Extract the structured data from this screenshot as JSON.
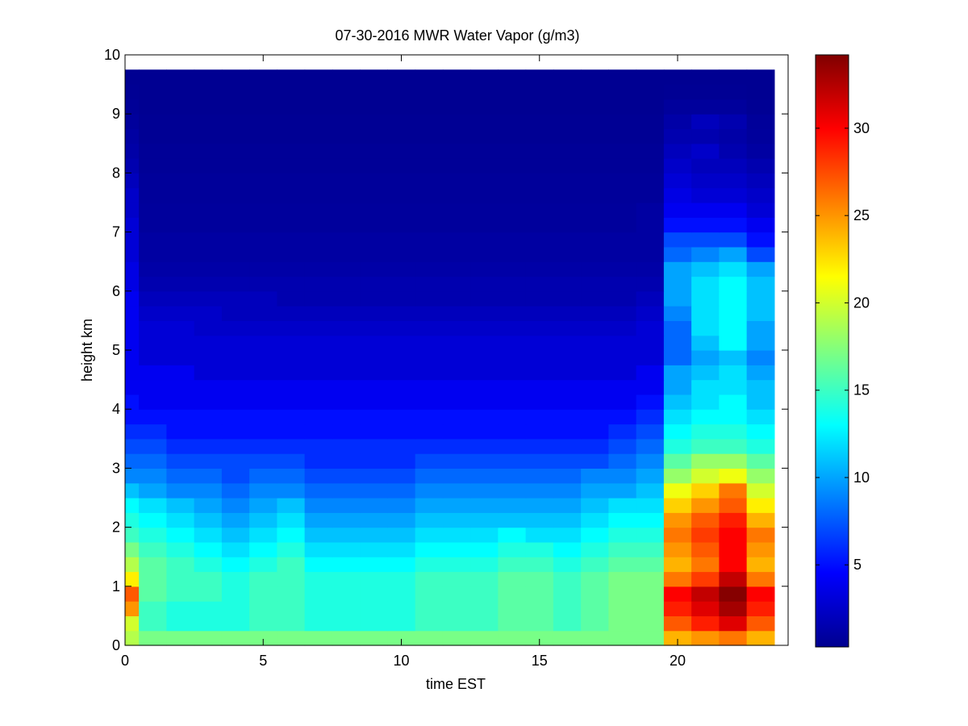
{
  "chart_data": {
    "type": "heatmap",
    "title": "07-30-2016 MWR Water Vapor (g/m3)",
    "xlabel": "time EST",
    "ylabel": "height km",
    "xlim": [
      0,
      24
    ],
    "ylim": [
      0,
      10
    ],
    "x_ticks": [
      0,
      5,
      10,
      15,
      20
    ],
    "y_ticks": [
      0,
      1,
      2,
      3,
      4,
      5,
      6,
      7,
      8,
      9,
      10
    ],
    "colormap": "jet",
    "colorbar": {
      "min": 0.3,
      "max": 34.2,
      "ticks": [
        5,
        10,
        15,
        20,
        25,
        30
      ]
    },
    "time_step_hours": 1,
    "time_centers": [
      0,
      1,
      2,
      3,
      4,
      5,
      6,
      7,
      8,
      9,
      10,
      11,
      12,
      13,
      14,
      15,
      16,
      17,
      18,
      19,
      20,
      21,
      22,
      23
    ],
    "height_step_km": 0.25,
    "height_levels": [
      0,
      0.25,
      0.5,
      0.75,
      1.0,
      1.25,
      1.5,
      1.75,
      2.0,
      2.25,
      2.5,
      2.75,
      3.0,
      3.25,
      3.5,
      3.75,
      4.0,
      4.25,
      4.5,
      4.75,
      5.0,
      5.25,
      5.5,
      5.75,
      6.0,
      6.25,
      6.5,
      6.75,
      7.0,
      7.25,
      7.5,
      7.75,
      8.0,
      8.25,
      8.5,
      8.75,
      9.0,
      9.25,
      9.5
    ],
    "values": [
      [
        19,
        17,
        17,
        17,
        17,
        17,
        17,
        17,
        17,
        17,
        17,
        17,
        17,
        17,
        17,
        17,
        17,
        17,
        17,
        17,
        24,
        25,
        26,
        24
      ],
      [
        20,
        15,
        14,
        14,
        14,
        15,
        15,
        14,
        14,
        14,
        14,
        15,
        15,
        15,
        16,
        16,
        15,
        16,
        17,
        17,
        27,
        29,
        31,
        27
      ],
      [
        25,
        15,
        14,
        14,
        14,
        15,
        15,
        14,
        14,
        14,
        14,
        15,
        15,
        15,
        16,
        16,
        15,
        16,
        17,
        17,
        29,
        31,
        33,
        29
      ],
      [
        27,
        16,
        15,
        15,
        14,
        15,
        15,
        14,
        14,
        14,
        14,
        15,
        15,
        15,
        16,
        16,
        15,
        16,
        17,
        17,
        30,
        32,
        34,
        30
      ],
      [
        22,
        16,
        15,
        15,
        14,
        15,
        15,
        14,
        14,
        14,
        14,
        15,
        15,
        15,
        16,
        16,
        15,
        16,
        17,
        17,
        26,
        28,
        32,
        26
      ],
      [
        19,
        16,
        15,
        14,
        13,
        14,
        15,
        13,
        13,
        13,
        13,
        14,
        14,
        14,
        15,
        15,
        14,
        15,
        16,
        16,
        24,
        26,
        30,
        24
      ],
      [
        17,
        15,
        14,
        13,
        12,
        13,
        14,
        12,
        12,
        12,
        12,
        13,
        13,
        13,
        14,
        14,
        13,
        14,
        15,
        15,
        25,
        27,
        30,
        25
      ],
      [
        15,
        14,
        13,
        12,
        11,
        12,
        13,
        11,
        11,
        11,
        11,
        12,
        12,
        12,
        13,
        12,
        12,
        13,
        14,
        14,
        26,
        28,
        30,
        26
      ],
      [
        14,
        13,
        12,
        11,
        10,
        11,
        12,
        10,
        10,
        10,
        10,
        11,
        11,
        11,
        11,
        11,
        11,
        12,
        13,
        13,
        25,
        27,
        29,
        24
      ],
      [
        13,
        12,
        11,
        10,
        9,
        10,
        11,
        9,
        9,
        9,
        9,
        10,
        10,
        10,
        10,
        10,
        10,
        11,
        12,
        12,
        23,
        25,
        27,
        22
      ],
      [
        11,
        10,
        9,
        9,
        8,
        9,
        9,
        8,
        8,
        8,
        8,
        9,
        9,
        9,
        9,
        9,
        9,
        10,
        10,
        11,
        21,
        23,
        26,
        20
      ],
      [
        9,
        9,
        8,
        8,
        7,
        8,
        8,
        7,
        7,
        7,
        7,
        8,
        8,
        8,
        8,
        8,
        8,
        9,
        9,
        10,
        18,
        20,
        21,
        18
      ],
      [
        8,
        8,
        7,
        7,
        7,
        7,
        7,
        6,
        6,
        6,
        6,
        7,
        7,
        7,
        7,
        7,
        7,
        7,
        8,
        9,
        16,
        18,
        18,
        16
      ],
      [
        7,
        7,
        6,
        6,
        6,
        6,
        6,
        6,
        6,
        6,
        6,
        6,
        6,
        6,
        6,
        6,
        6,
        6,
        7,
        8,
        14,
        15,
        15,
        14
      ],
      [
        6,
        6,
        5,
        5,
        5,
        5,
        5,
        5,
        5,
        5,
        5,
        5,
        5,
        5,
        5,
        5,
        5,
        5,
        6,
        7,
        13,
        14,
        14,
        13
      ],
      [
        5,
        5,
        5,
        5,
        5,
        5,
        5,
        5,
        5,
        5,
        5,
        5,
        5,
        5,
        5,
        5,
        5,
        5,
        5,
        6,
        12,
        13,
        13,
        12
      ],
      [
        5,
        4,
        4,
        4,
        4,
        4,
        4,
        4,
        4,
        4,
        4,
        4,
        4,
        4,
        4,
        4,
        4,
        4,
        4,
        5,
        11,
        12,
        13,
        11
      ],
      [
        4,
        4,
        4,
        4,
        4,
        4,
        4,
        4,
        4,
        4,
        4,
        4,
        4,
        4,
        4,
        4,
        4,
        4,
        4,
        4,
        10,
        12,
        12,
        11
      ],
      [
        4,
        4,
        4,
        3,
        3,
        3,
        3,
        3,
        3,
        3,
        3,
        3,
        3,
        3,
        3,
        3,
        3,
        3,
        3,
        4,
        10,
        11,
        12,
        10
      ],
      [
        4,
        3,
        3,
        3,
        3,
        3,
        3,
        3,
        3,
        3,
        3,
        3,
        3,
        3,
        3,
        3,
        3,
        3,
        3,
        3,
        8,
        10,
        11,
        9
      ],
      [
        4,
        3,
        3,
        3,
        3,
        3,
        3,
        3,
        3,
        3,
        3,
        3,
        3,
        3,
        3,
        3,
        3,
        3,
        3,
        3,
        8,
        11,
        13,
        10
      ],
      [
        4,
        3,
        3,
        2.5,
        2.5,
        2.5,
        2.5,
        2.5,
        2.5,
        2.5,
        2.5,
        2.5,
        2.5,
        2.5,
        2.5,
        2.5,
        2.5,
        2.5,
        2.5,
        3,
        8,
        12,
        13,
        10
      ],
      [
        4,
        2.5,
        2.5,
        2.5,
        2,
        2,
        2,
        2,
        2,
        2,
        2,
        2,
        2,
        2,
        2,
        2,
        2,
        2,
        2,
        2.5,
        9,
        12,
        13,
        11
      ],
      [
        4,
        2,
        2,
        2,
        2,
        2,
        1.5,
        1.5,
        1.5,
        1.5,
        1.5,
        1.5,
        1.5,
        1.5,
        1.5,
        1.5,
        1.5,
        1.5,
        1.5,
        2,
        10,
        12,
        13,
        11
      ],
      [
        3.5,
        1.5,
        1.5,
        1.5,
        1.5,
        1.5,
        1.5,
        1.5,
        1.5,
        1.5,
        1.5,
        1.5,
        1.5,
        1.5,
        1.5,
        1.5,
        1.5,
        1.5,
        1.5,
        1.5,
        10,
        12,
        13,
        11
      ],
      [
        3.5,
        1.2,
        1.2,
        1.2,
        1.2,
        1.2,
        1.2,
        1.2,
        1.2,
        1.2,
        1.2,
        1.2,
        1.2,
        1.2,
        1.2,
        1.2,
        1.2,
        1.2,
        1.2,
        1.2,
        10,
        11,
        12,
        10
      ],
      [
        3,
        1,
        1,
        1,
        1,
        1,
        1,
        1,
        1,
        1,
        1,
        1,
        1,
        1,
        1,
        1,
        1,
        1,
        1,
        1,
        8,
        9,
        10,
        7
      ],
      [
        3,
        1,
        1,
        1,
        1,
        1,
        1,
        1,
        1,
        1,
        1,
        1,
        1,
        1,
        1,
        1,
        1,
        1,
        1,
        1,
        7,
        7,
        7,
        5
      ],
      [
        3,
        0.8,
        0.8,
        0.8,
        0.8,
        0.8,
        0.8,
        0.8,
        0.8,
        0.8,
        0.8,
        0.8,
        0.8,
        0.8,
        0.8,
        0.8,
        0.8,
        0.8,
        0.8,
        1,
        5,
        5,
        5,
        4
      ],
      [
        2.5,
        0.8,
        0.8,
        0.8,
        0.8,
        0.8,
        0.8,
        0.8,
        0.8,
        0.8,
        0.8,
        0.8,
        0.8,
        0.8,
        0.8,
        0.8,
        0.8,
        0.8,
        0.8,
        1,
        4,
        4,
        4,
        3
      ],
      [
        2.5,
        0.7,
        0.7,
        0.7,
        0.7,
        0.7,
        0.7,
        0.7,
        0.7,
        0.7,
        0.7,
        0.7,
        0.7,
        0.7,
        0.7,
        0.7,
        0.7,
        0.7,
        0.7,
        0.7,
        3.5,
        3,
        3,
        2.5
      ],
      [
        2,
        0.7,
        0.7,
        0.7,
        0.7,
        0.7,
        0.7,
        0.7,
        0.7,
        0.7,
        0.7,
        0.7,
        0.7,
        0.7,
        0.7,
        0.7,
        0.7,
        0.7,
        0.7,
        0.7,
        3,
        2.5,
        2.5,
        2
      ],
      [
        1.5,
        0.6,
        0.6,
        0.6,
        0.6,
        0.6,
        0.6,
        0.6,
        0.6,
        0.6,
        0.6,
        0.6,
        0.6,
        0.6,
        0.6,
        0.6,
        0.6,
        0.6,
        0.6,
        0.6,
        2.5,
        2,
        2,
        1.5
      ],
      [
        1.2,
        0.6,
        0.6,
        0.6,
        0.6,
        0.6,
        0.6,
        0.6,
        0.6,
        0.6,
        0.6,
        0.6,
        0.6,
        0.6,
        0.6,
        0.6,
        0.6,
        0.6,
        0.6,
        0.6,
        2,
        2.5,
        1.5,
        1
      ],
      [
        1,
        0.5,
        0.5,
        0.5,
        0.5,
        0.5,
        0.5,
        0.5,
        0.5,
        0.5,
        0.5,
        0.5,
        0.5,
        0.5,
        0.5,
        0.5,
        0.5,
        0.5,
        0.5,
        0.5,
        1.5,
        1.5,
        1.2,
        0.8
      ],
      [
        0.8,
        0.5,
        0.5,
        0.5,
        0.5,
        0.5,
        0.5,
        0.5,
        0.5,
        0.5,
        0.5,
        0.5,
        0.5,
        0.5,
        0.5,
        0.5,
        0.5,
        0.5,
        0.5,
        0.5,
        1.2,
        2,
        1.5,
        0.7
      ],
      [
        0.6,
        0.4,
        0.4,
        0.4,
        0.4,
        0.4,
        0.4,
        0.4,
        0.4,
        0.4,
        0.4,
        0.4,
        0.4,
        0.4,
        0.4,
        0.4,
        0.4,
        0.4,
        0.4,
        0.4,
        0.8,
        0.8,
        0.8,
        0.5
      ],
      [
        0.5,
        0.4,
        0.4,
        0.4,
        0.4,
        0.4,
        0.4,
        0.4,
        0.4,
        0.4,
        0.4,
        0.4,
        0.4,
        0.4,
        0.4,
        0.4,
        0.4,
        0.4,
        0.4,
        0.4,
        0.5,
        0.5,
        0.5,
        0.4
      ],
      [
        0.4,
        0.4,
        0.4,
        0.4,
        0.4,
        0.4,
        0.4,
        0.4,
        0.4,
        0.4,
        0.4,
        0.4,
        0.4,
        0.4,
        0.4,
        0.4,
        0.4,
        0.4,
        0.4,
        0.4,
        0.4,
        0.4,
        0.4,
        0.4
      ]
    ]
  }
}
